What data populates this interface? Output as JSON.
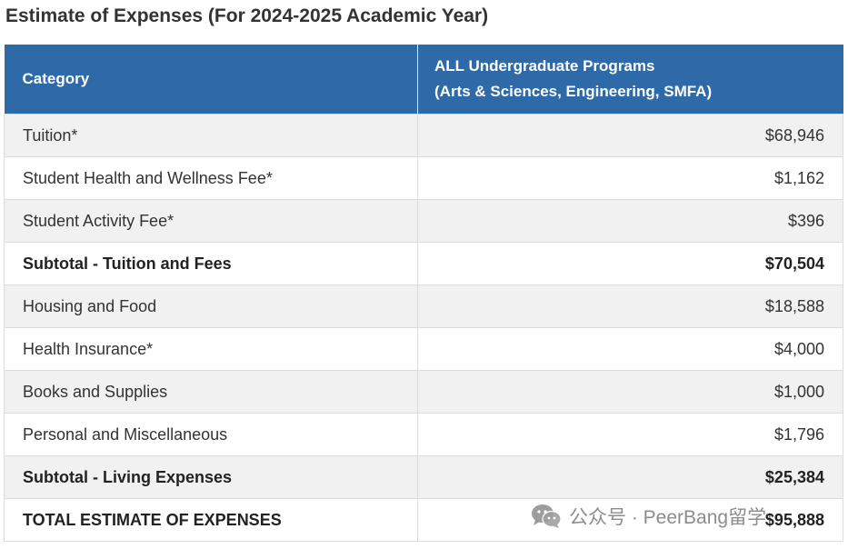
{
  "title": "Estimate of Expenses (For 2024-2025 Academic Year)",
  "table": {
    "headers": {
      "category": "Category",
      "programs_line1": "ALL Undergraduate Programs",
      "programs_line2": "(Arts & Sciences, Engineering, SMFA)"
    },
    "rows": [
      {
        "label": "Tuition*",
        "amount": "$68,946",
        "bold": false
      },
      {
        "label": "Student Health and Wellness Fee*",
        "amount": "$1,162",
        "bold": false
      },
      {
        "label": "Student Activity Fee*",
        "amount": "$396",
        "bold": false
      },
      {
        "label": "Subtotal - Tuition and Fees",
        "amount": "$70,504",
        "bold": true
      },
      {
        "label": "Housing and Food",
        "amount": "$18,588",
        "bold": false
      },
      {
        "label": "Health Insurance*",
        "amount": "$4,000",
        "bold": false
      },
      {
        "label": "Books and Supplies",
        "amount": "$1,000",
        "bold": false
      },
      {
        "label": "Personal and Miscellaneous",
        "amount": "$1,796",
        "bold": false
      },
      {
        "label": "Subtotal - Living Expenses",
        "amount": "$25,384",
        "bold": true
      },
      {
        "label": "TOTAL ESTIMATE OF EXPENSES",
        "amount": "$95,888",
        "bold": true
      }
    ]
  },
  "watermark": {
    "icon": "wechat-icon",
    "text": "公众号 · PeerBang留学"
  },
  "colors": {
    "header_bg": "#2f6aa8",
    "stripe": "#f1f1f1"
  }
}
